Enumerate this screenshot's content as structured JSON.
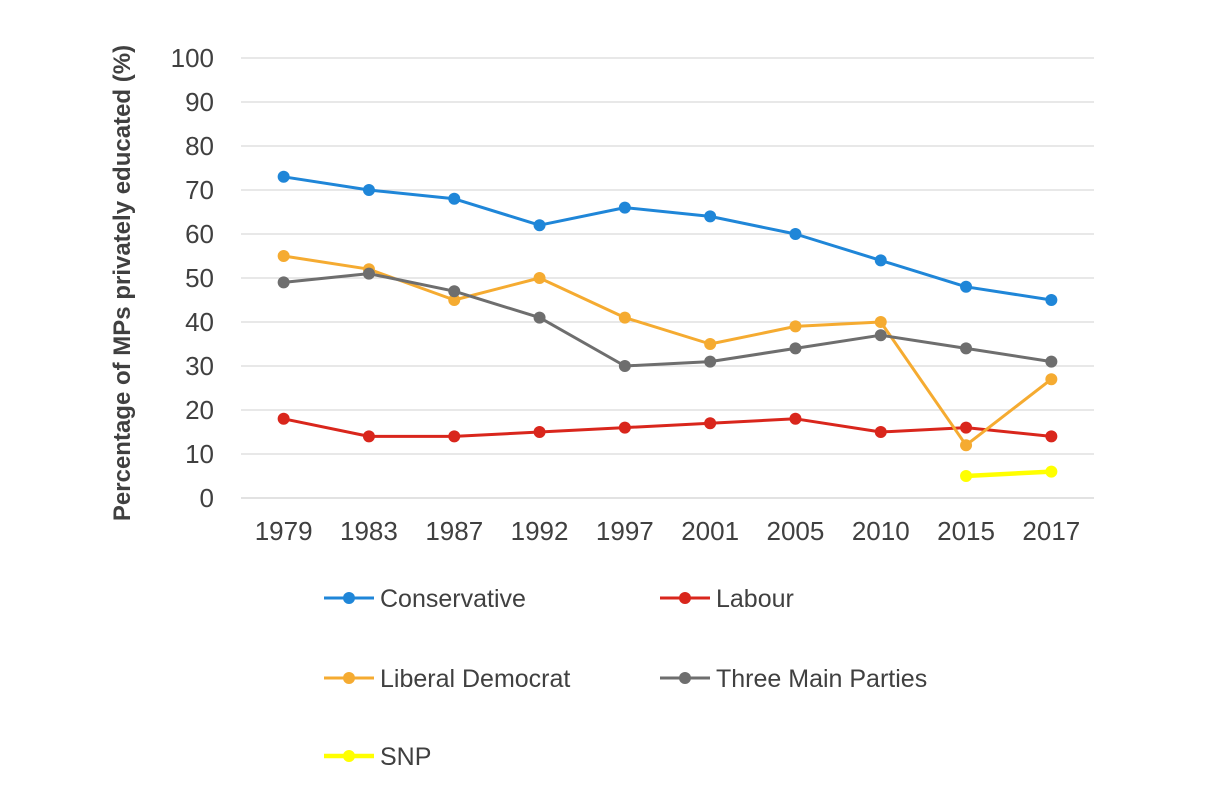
{
  "chart_data": {
    "type": "line",
    "title": "",
    "xlabel": "",
    "ylabel": "Percentage of MPs privately educated (%)",
    "categories": [
      "1979",
      "1983",
      "1987",
      "1992",
      "1997",
      "2001",
      "2005",
      "2010",
      "2015",
      "2017"
    ],
    "ylim": [
      0,
      100
    ],
    "yticks": [
      0,
      10,
      20,
      30,
      40,
      50,
      60,
      70,
      80,
      90,
      100
    ],
    "grid": true,
    "legend_position": "bottom",
    "series": [
      {
        "name": "Conservative",
        "color": "#1f86d8",
        "values": [
          73,
          70,
          68,
          62,
          66,
          64,
          60,
          54,
          48,
          45
        ]
      },
      {
        "name": "Labour",
        "color": "#d9261c",
        "values": [
          18,
          14,
          14,
          15,
          16,
          17,
          18,
          15,
          16,
          14
        ]
      },
      {
        "name": "Liberal Democrat",
        "color": "#f5ab31",
        "values": [
          55,
          52,
          45,
          50,
          41,
          35,
          39,
          40,
          12,
          27
        ]
      },
      {
        "name": "Three Main Parties",
        "color": "#6e6e6e",
        "values": [
          49,
          51,
          47,
          41,
          30,
          31,
          34,
          37,
          34,
          31
        ]
      },
      {
        "name": "SNP",
        "color": "#ffff00",
        "values": [
          null,
          null,
          null,
          null,
          null,
          null,
          null,
          null,
          5,
          6
        ]
      }
    ]
  }
}
